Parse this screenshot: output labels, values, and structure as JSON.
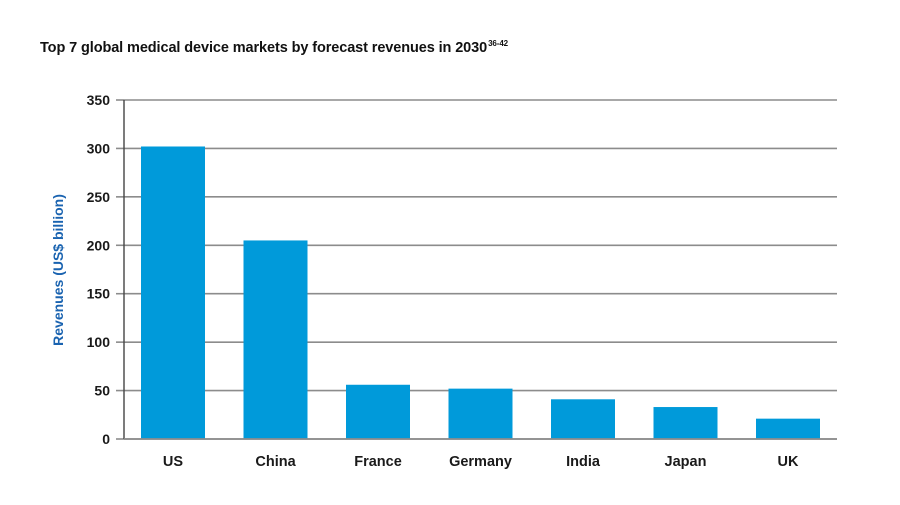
{
  "chart_data": {
    "type": "bar",
    "title": "Top 7 global medical device markets by forecast revenues in 2030",
    "title_superscript": "36-42",
    "xlabel": "",
    "ylabel": "Revenues (US$ billion)",
    "categories": [
      "US",
      "China",
      "France",
      "Germany",
      "India",
      "Japan",
      "UK"
    ],
    "values": [
      302,
      205,
      56,
      52,
      41,
      33,
      21
    ],
    "ylim": [
      0,
      350
    ],
    "yticks": [
      0,
      50,
      100,
      150,
      200,
      250,
      300,
      350
    ],
    "grid": true,
    "legend": "none",
    "colors": {
      "bar": "#009ADA",
      "ylabel": "#1A63B0",
      "grid": "#8C8C8C",
      "axis": "#444444"
    }
  }
}
